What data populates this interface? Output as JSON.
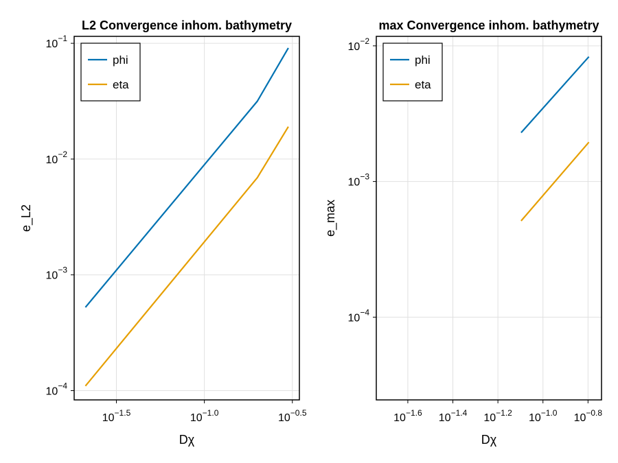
{
  "colors": {
    "phi": "#0072b2",
    "eta": "#e69f00",
    "grid": "#e0e0e0",
    "frame": "#000000"
  },
  "chart_data": [
    {
      "type": "line",
      "title": "L2 Convergence inhom. bathymetry",
      "xlabel": "Dχ",
      "ylabel": "e_L2",
      "xscale": "log10",
      "yscale": "log10",
      "xlim_log10": [
        -1.74,
        -0.46
      ],
      "ylim_log10": [
        -4.08,
        -0.94
      ],
      "xticks": [
        {
          "exp": -1.5,
          "base": "10",
          "sup": "−1.5"
        },
        {
          "exp": -1.0,
          "base": "10",
          "sup": "−1.0"
        },
        {
          "exp": -0.5,
          "base": "10",
          "sup": "−0.5"
        }
      ],
      "yticks": [
        {
          "exp": -4,
          "base": "10",
          "sup": "−4"
        },
        {
          "exp": -3,
          "base": "10",
          "sup": "−3"
        },
        {
          "exp": -2,
          "base": "10",
          "sup": "−2"
        },
        {
          "exp": -1,
          "base": "10",
          "sup": "−1"
        }
      ],
      "grid": true,
      "legend_position": "top-left",
      "series": [
        {
          "name": "phi",
          "x_log10": [
            -1.676,
            -0.699,
            -0.523
          ],
          "y_log10": [
            -3.28,
            -1.5,
            -1.04
          ]
        },
        {
          "name": "eta",
          "x_log10": [
            -1.676,
            -0.699,
            -0.523
          ],
          "y_log10": [
            -3.96,
            -2.16,
            -1.72
          ]
        }
      ]
    },
    {
      "type": "line",
      "title": "max Convergence inhom. bathymetry",
      "xlabel": "Dχ",
      "ylabel": "e_max",
      "xscale": "log10",
      "yscale": "log10",
      "xlim_log10": [
        -1.74,
        -0.74
      ],
      "ylim_log10": [
        -4.61,
        -1.93
      ],
      "xticks": [
        {
          "exp": -1.6,
          "base": "10",
          "sup": "−1.6"
        },
        {
          "exp": -1.4,
          "base": "10",
          "sup": "−1.4"
        },
        {
          "exp": -1.2,
          "base": "10",
          "sup": "−1.2"
        },
        {
          "exp": -1.0,
          "base": "10",
          "sup": "−1.0"
        },
        {
          "exp": -0.8,
          "base": "10",
          "sup": "−0.8"
        }
      ],
      "yticks": [
        {
          "exp": -4,
          "base": "10",
          "sup": "−4"
        },
        {
          "exp": -3,
          "base": "10",
          "sup": "−3"
        },
        {
          "exp": -2,
          "base": "10",
          "sup": "−2"
        }
      ],
      "grid": true,
      "legend_position": "top-left",
      "series": [
        {
          "name": "phi",
          "x_log10": [
            -1.097,
            -0.796
          ],
          "y_log10": [
            -2.64,
            -2.08
          ]
        },
        {
          "name": "eta",
          "x_log10": [
            -1.097,
            -0.796
          ],
          "y_log10": [
            -3.29,
            -2.71
          ]
        }
      ]
    }
  ]
}
